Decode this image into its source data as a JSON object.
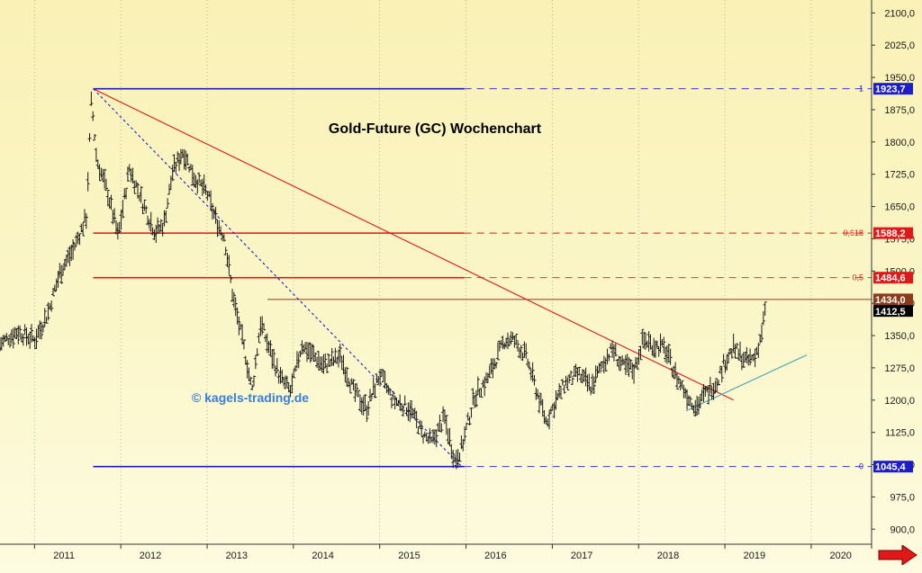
{
  "chart_data": {
    "type": "line",
    "title": "Gold-Future (GC) Wochenchart",
    "watermark": "© kagels-trading.de",
    "x_axis": {
      "labels": [
        "2011",
        "2012",
        "2013",
        "2014",
        "2015",
        "2016",
        "2017",
        "2018",
        "2019",
        "2020"
      ],
      "range": [
        2010.6,
        2020.7
      ]
    },
    "y_axis": {
      "tick_labels": [
        "2100,0",
        "2025,0",
        "1950,0",
        "1875,0",
        "1800,0",
        "1725,0",
        "1650,0",
        "1575,0",
        "1500,0",
        "1425,0",
        "1350,0",
        "1275,0",
        "1200,0",
        "1125,0",
        "1050,0",
        "975,0",
        "900,0"
      ],
      "tick_values": [
        2100,
        2025,
        1950,
        1875,
        1800,
        1725,
        1650,
        1575,
        1500,
        1425,
        1350,
        1275,
        1200,
        1125,
        1050,
        975,
        900
      ],
      "range": [
        865,
        2130
      ],
      "position": "right"
    },
    "grid": {
      "vertical": true,
      "horizontal": false,
      "style": "dotted"
    },
    "series": [
      {
        "type": "ohlc",
        "approximate": true,
        "points": [
          [
            2010.6,
            1330
          ],
          [
            2010.8,
            1360
          ],
          [
            2011.0,
            1340
          ],
          [
            2011.15,
            1400
          ],
          [
            2011.3,
            1500
          ],
          [
            2011.45,
            1550
          ],
          [
            2011.6,
            1625
          ],
          [
            2011.66,
            1900
          ],
          [
            2011.72,
            1760
          ],
          [
            2011.85,
            1680
          ],
          [
            2011.97,
            1580
          ],
          [
            2012.1,
            1740
          ],
          [
            2012.25,
            1660
          ],
          [
            2012.4,
            1590
          ],
          [
            2012.5,
            1610
          ],
          [
            2012.6,
            1730
          ],
          [
            2012.72,
            1780
          ],
          [
            2012.85,
            1720
          ],
          [
            2013.0,
            1680
          ],
          [
            2013.1,
            1620
          ],
          [
            2013.2,
            1580
          ],
          [
            2013.3,
            1440
          ],
          [
            2013.45,
            1300
          ],
          [
            2013.52,
            1220
          ],
          [
            2013.62,
            1380
          ],
          [
            2013.72,
            1320
          ],
          [
            2013.85,
            1250
          ],
          [
            2013.97,
            1220
          ],
          [
            2014.1,
            1330
          ],
          [
            2014.2,
            1310
          ],
          [
            2014.35,
            1280
          ],
          [
            2014.55,
            1300
          ],
          [
            2014.7,
            1220
          ],
          [
            2014.85,
            1180
          ],
          [
            2015.0,
            1260
          ],
          [
            2015.15,
            1200
          ],
          [
            2015.35,
            1180
          ],
          [
            2015.5,
            1120
          ],
          [
            2015.6,
            1100
          ],
          [
            2015.75,
            1160
          ],
          [
            2015.87,
            1060
          ],
          [
            2015.95,
            1090
          ],
          [
            2016.1,
            1210
          ],
          [
            2016.25,
            1250
          ],
          [
            2016.45,
            1340
          ],
          [
            2016.55,
            1340
          ],
          [
            2016.7,
            1300
          ],
          [
            2016.82,
            1220
          ],
          [
            2016.93,
            1150
          ],
          [
            2017.0,
            1180
          ],
          [
            2017.15,
            1240
          ],
          [
            2017.3,
            1260
          ],
          [
            2017.45,
            1230
          ],
          [
            2017.6,
            1290
          ],
          [
            2017.7,
            1320
          ],
          [
            2017.8,
            1280
          ],
          [
            2017.95,
            1270
          ],
          [
            2018.05,
            1340
          ],
          [
            2018.15,
            1330
          ],
          [
            2018.3,
            1320
          ],
          [
            2018.45,
            1250
          ],
          [
            2018.6,
            1200
          ],
          [
            2018.67,
            1185
          ],
          [
            2018.8,
            1220
          ],
          [
            2018.9,
            1240
          ],
          [
            2019.0,
            1290
          ],
          [
            2019.1,
            1320
          ],
          [
            2019.25,
            1290
          ],
          [
            2019.35,
            1300
          ],
          [
            2019.42,
            1350
          ],
          [
            2019.47,
            1412.5
          ]
        ]
      }
    ],
    "horizontal_levels": [
      {
        "fib_label": "1",
        "value_label": "1923,7",
        "value": 1923.7,
        "color": "#1d1dc8",
        "x_from": 2011.68
      },
      {
        "fib_label": "0,618",
        "value_label": "1588,2",
        "value": 1588.2,
        "color": "#e01818",
        "x_from": 2011.68
      },
      {
        "fib_label": "0,5",
        "value_label": "1484,6",
        "value": 1484.6,
        "color": "#e01818",
        "x_from": 2011.68
      },
      {
        "fib_label": "",
        "value_label": "1434,0",
        "value": 1434.0,
        "color": "#8b3a1a",
        "x_from": 2013.7
      },
      {
        "fib_label": "0",
        "value_label": "1045,4",
        "value": 1045.4,
        "color": "#1d1dc8",
        "x_from": 2011.68
      }
    ],
    "last_price_label": "1412,5",
    "last_price": 1412.5,
    "trendlines": [
      {
        "color": "#e01818",
        "from": [
          2011.68,
          1923.7
        ],
        "to": [
          2019.1,
          1200
        ]
      },
      {
        "color": "#1d1dc8",
        "style": "dotted",
        "from": [
          2011.68,
          1923.7
        ],
        "to": [
          2015.95,
          1045.4
        ]
      },
      {
        "color": "#4aa3b5",
        "from": [
          2018.55,
          1175
        ],
        "to": [
          2019.95,
          1305
        ]
      }
    ]
  },
  "ui": {
    "arrow_icon": "right-arrow-icon",
    "arrow_color": "#e01818"
  }
}
